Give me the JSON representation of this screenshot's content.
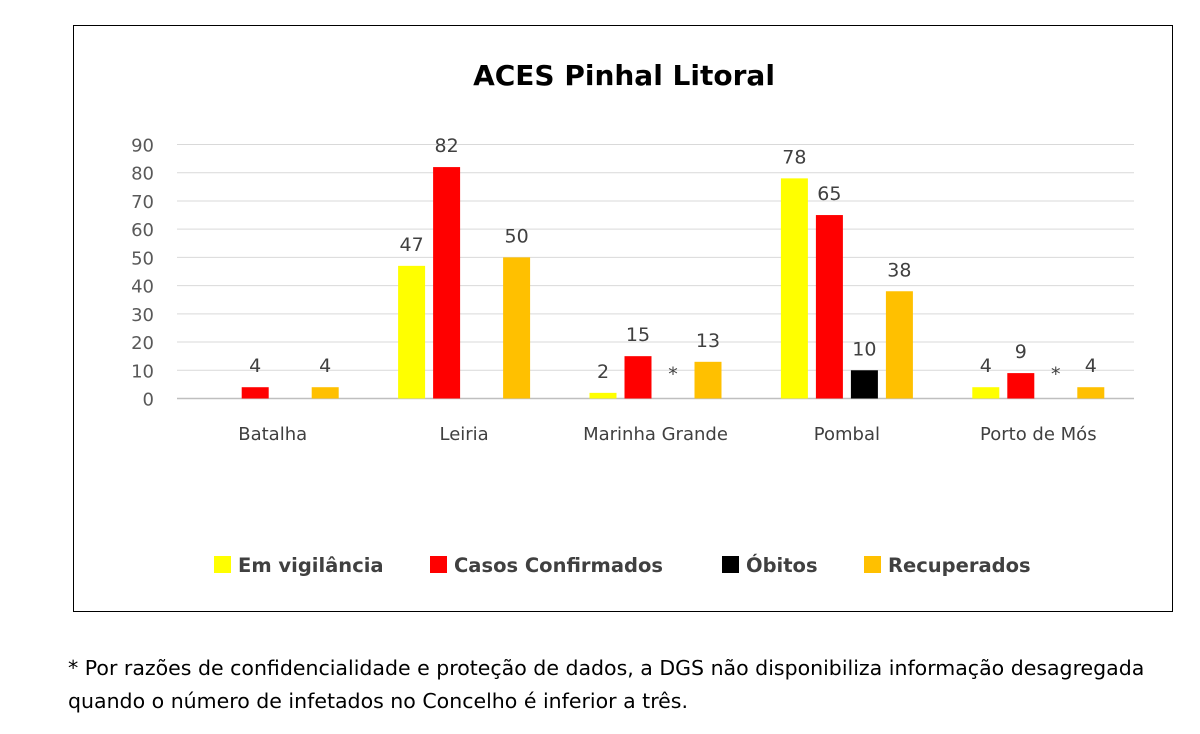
{
  "chart_data": {
    "type": "bar",
    "title": "ACES Pinhal Litoral",
    "xlabel": "",
    "ylabel": "",
    "ylim": [
      0,
      90
    ],
    "yticks": [
      0,
      10,
      20,
      30,
      40,
      50,
      60,
      70,
      80,
      90
    ],
    "grid": true,
    "legend": "bottom",
    "categories": [
      "Batalha",
      "Leiria",
      "Marinha Grande",
      "Pombal",
      "Porto de Mós"
    ],
    "series": [
      {
        "name": "Em vigilância",
        "color": "#FFFF00",
        "values": [
          null,
          47,
          2,
          78,
          4
        ]
      },
      {
        "name": "Casos Confirmados",
        "color": "#FF0000",
        "values": [
          4,
          82,
          15,
          65,
          9
        ]
      },
      {
        "name": "Óbitos",
        "color": "#000000",
        "values": [
          null,
          null,
          "*",
          10,
          "*"
        ]
      },
      {
        "name": "Recuperados",
        "color": "#FFC000",
        "values": [
          4,
          50,
          13,
          38,
          4
        ]
      }
    ]
  },
  "footnote": "* Por razões de confidencialidade e proteção de dados, a DGS não disponibiliza informação desagregada quando o número de infetados no Concelho é inferior a três."
}
